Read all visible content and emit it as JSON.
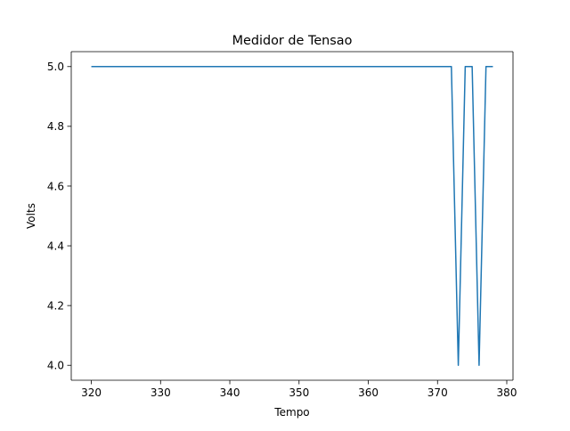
{
  "chart_data": {
    "type": "line",
    "title": "Medidor de Tensao",
    "xlabel": "Tempo",
    "ylabel": "Volts",
    "xlim": [
      317.1,
      380.9
    ],
    "ylim": [
      3.95,
      5.05
    ],
    "xticks": [
      320,
      330,
      340,
      350,
      360,
      370,
      380
    ],
    "yticks": [
      4.0,
      4.2,
      4.4,
      4.6,
      4.8,
      5.0
    ],
    "xtick_labels": [
      "320",
      "330",
      "340",
      "350",
      "360",
      "370",
      "380"
    ],
    "ytick_labels": [
      "4.0",
      "4.2",
      "4.4",
      "4.6",
      "4.8",
      "5.0"
    ],
    "grid": false,
    "legend": "none",
    "series": [
      {
        "color": "#1f77b4",
        "x": [
          320,
          321,
          322,
          323,
          324,
          325,
          326,
          327,
          328,
          329,
          330,
          331,
          332,
          333,
          334,
          335,
          336,
          337,
          338,
          339,
          340,
          341,
          342,
          343,
          344,
          345,
          346,
          347,
          348,
          349,
          350,
          351,
          352,
          353,
          354,
          355,
          356,
          357,
          358,
          359,
          360,
          361,
          362,
          363,
          364,
          365,
          366,
          367,
          368,
          369,
          370,
          371,
          372,
          373,
          374,
          375,
          376,
          377,
          378
        ],
        "y": [
          5.0,
          5.0,
          5.0,
          5.0,
          5.0,
          5.0,
          5.0,
          5.0,
          5.0,
          5.0,
          5.0,
          5.0,
          5.0,
          5.0,
          5.0,
          5.0,
          5.0,
          5.0,
          5.0,
          5.0,
          5.0,
          5.0,
          5.0,
          5.0,
          5.0,
          5.0,
          5.0,
          5.0,
          5.0,
          5.0,
          5.0,
          5.0,
          5.0,
          5.0,
          5.0,
          5.0,
          5.0,
          5.0,
          5.0,
          5.0,
          5.0,
          5.0,
          5.0,
          5.0,
          5.0,
          5.0,
          5.0,
          5.0,
          5.0,
          5.0,
          5.0,
          5.0,
          5.0,
          4.0,
          5.0,
          5.0,
          4.0,
          5.0,
          5.0
        ]
      }
    ]
  }
}
